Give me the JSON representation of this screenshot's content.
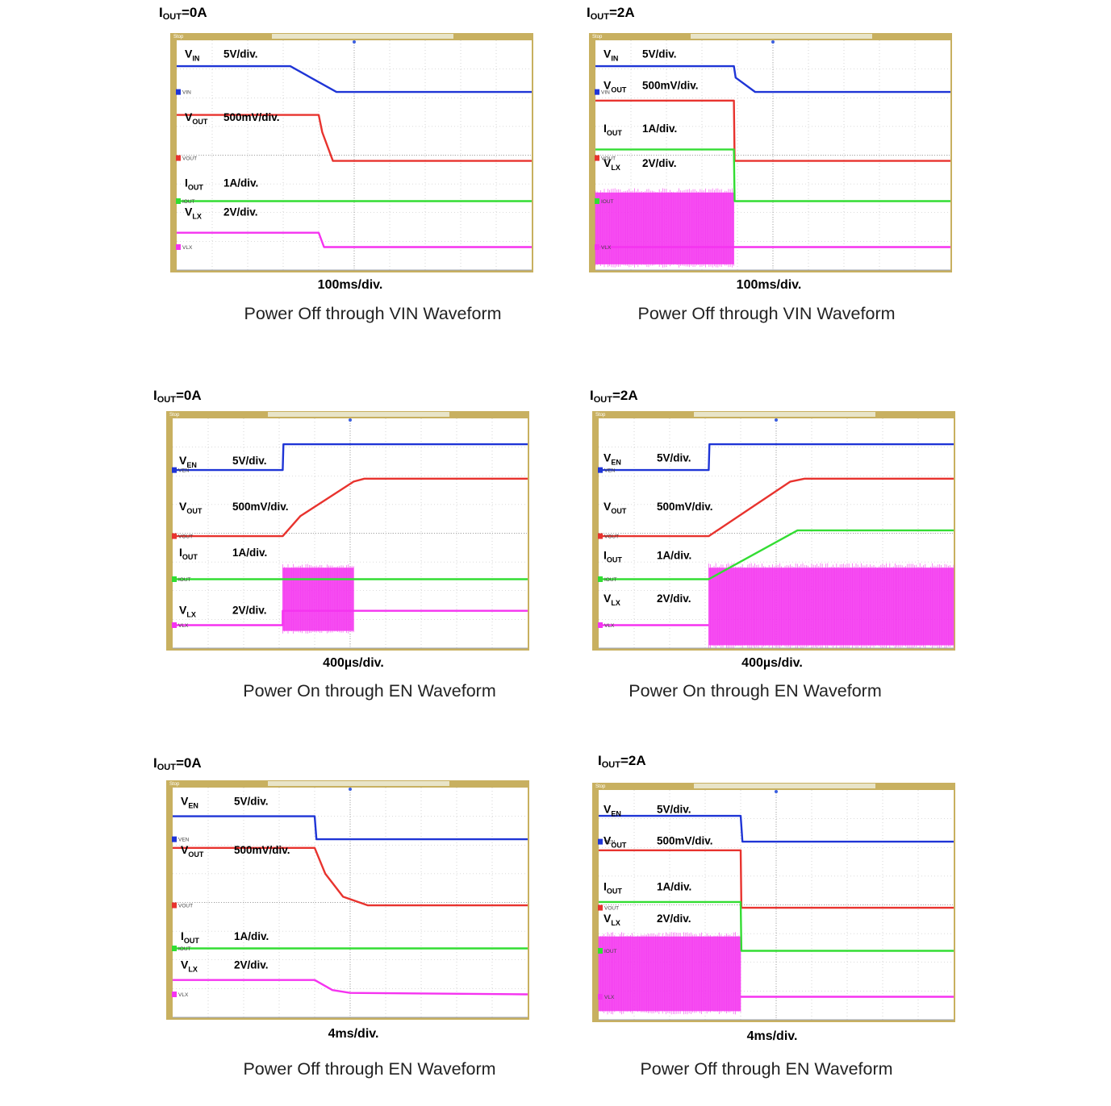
{
  "colors": {
    "VIN": "#1f35d6",
    "VEN": "#1f35d6",
    "VOUT": "#e8332e",
    "IOUT": "#33dd33",
    "VLX": "#f533f0",
    "frame": "#c8b060",
    "plot_bg": "#ffffff",
    "grid": "#b8b8b8"
  },
  "panels": [
    {
      "condition_main": "I",
      "condition_sub": "OUT",
      "condition_value": "=0A",
      "status": "Stop",
      "timebase": "100ms/div.",
      "caption": "Power Off through VIN Waveform",
      "trace_labels": [
        {
          "main": "V",
          "sub": "IN",
          "scale": "5V/div."
        },
        {
          "main": "V",
          "sub": "OUT",
          "scale": "500mV/div."
        },
        {
          "main": "I",
          "sub": "OUT",
          "scale": "1A/div."
        },
        {
          "main": "V",
          "sub": "LX",
          "scale": "2V/div."
        }
      ],
      "channel_markers": [
        "VIN",
        "VOUT",
        "IOUT",
        "VLX"
      ]
    },
    {
      "condition_main": "I",
      "condition_sub": "OUT",
      "condition_value": "=2A",
      "status": "Stop",
      "timebase": "100ms/div.",
      "caption": "Power Off through VIN Waveform",
      "trace_labels": [
        {
          "main": "V",
          "sub": "IN",
          "scale": "5V/div."
        },
        {
          "main": "V",
          "sub": "OUT",
          "scale": "500mV/div."
        },
        {
          "main": "I",
          "sub": "OUT",
          "scale": "1A/div."
        },
        {
          "main": "V",
          "sub": "LX",
          "scale": "2V/div."
        }
      ],
      "channel_markers": [
        "VIN",
        "VOUT",
        "IOUT",
        "VLX"
      ]
    },
    {
      "condition_main": "I",
      "condition_sub": "OUT",
      "condition_value": "=0A",
      "status": "Stop",
      "timebase": "400µs/div.",
      "caption": "Power On through EN Waveform",
      "trace_labels": [
        {
          "main": "V",
          "sub": "EN",
          "scale": "5V/div."
        },
        {
          "main": "V",
          "sub": "OUT",
          "scale": "500mV/div."
        },
        {
          "main": "I",
          "sub": "OUT",
          "scale": "1A/div."
        },
        {
          "main": "V",
          "sub": "LX",
          "scale": "2V/div."
        }
      ],
      "channel_markers": [
        "VEN",
        "VOUT",
        "IOUT",
        "VLX"
      ]
    },
    {
      "condition_main": "I",
      "condition_sub": "OUT",
      "condition_value": "=2A",
      "status": "Stop",
      "timebase": "400µs/div.",
      "caption": "Power On through EN Waveform",
      "trace_labels": [
        {
          "main": "V",
          "sub": "EN",
          "scale": "5V/div."
        },
        {
          "main": "V",
          "sub": "OUT",
          "scale": "500mV/div."
        },
        {
          "main": "I",
          "sub": "OUT",
          "scale": "1A/div."
        },
        {
          "main": "V",
          "sub": "LX",
          "scale": "2V/div."
        }
      ],
      "channel_markers": [
        "VEN",
        "VOUT",
        "IOUT",
        "VLX"
      ]
    },
    {
      "condition_main": "I",
      "condition_sub": "OUT",
      "condition_value": "=0A",
      "status": "Stop",
      "timebase": "4ms/div.",
      "caption": "Power Off through EN Waveform",
      "trace_labels": [
        {
          "main": "V",
          "sub": "EN",
          "scale": "5V/div."
        },
        {
          "main": "V",
          "sub": "OUT",
          "scale": "500mV/div."
        },
        {
          "main": "I",
          "sub": "OUT",
          "scale": "1A/div."
        },
        {
          "main": "V",
          "sub": "LX",
          "scale": "2V/div."
        }
      ],
      "channel_markers": [
        "VEN",
        "VOUT",
        "IOUT",
        "VLX"
      ]
    },
    {
      "condition_main": "I",
      "condition_sub": "OUT",
      "condition_value": "=2A",
      "status": "Stop",
      "timebase": "4ms/div.",
      "caption": "Power Off through EN Waveform",
      "trace_labels": [
        {
          "main": "V",
          "sub": "EN",
          "scale": "5V/div."
        },
        {
          "main": "V",
          "sub": "OUT",
          "scale": "500mV/div."
        },
        {
          "main": "I",
          "sub": "OUT",
          "scale": "1A/div."
        },
        {
          "main": "V",
          "sub": "LX",
          "scale": "2V/div."
        }
      ],
      "channel_markers": [
        "VEN",
        "VOUT",
        "IOUT",
        "VLX"
      ]
    }
  ],
  "chart_data": [
    {
      "type": "line",
      "grid": true,
      "x_divisions": 10,
      "y_divisions": 8,
      "x_unit": "div",
      "y_unit": "div",
      "series": [
        {
          "name": "VIN",
          "points": [
            [
              0,
              7.1
            ],
            [
              3.2,
              7.1
            ],
            [
              4.5,
              6.2
            ],
            [
              10,
              6.2
            ]
          ]
        },
        {
          "name": "VOUT",
          "points": [
            [
              0,
              5.4
            ],
            [
              4.0,
              5.4
            ],
            [
              4.1,
              4.8
            ],
            [
              4.4,
              3.8
            ],
            [
              10,
              3.8
            ]
          ]
        },
        {
          "name": "IOUT",
          "points": [
            [
              0,
              2.4
            ],
            [
              10,
              2.4
            ]
          ]
        },
        {
          "name": "VLX",
          "points": [
            [
              0,
              1.3
            ],
            [
              4.0,
              1.3
            ],
            [
              4.15,
              0.8
            ],
            [
              10,
              0.8
            ]
          ]
        }
      ]
    },
    {
      "type": "line",
      "grid": true,
      "x_divisions": 10,
      "y_divisions": 8,
      "x_unit": "div",
      "y_unit": "div",
      "series": [
        {
          "name": "VIN",
          "points": [
            [
              0,
              7.1
            ],
            [
              3.9,
              7.1
            ],
            [
              3.95,
              6.7
            ],
            [
              4.5,
              6.2
            ],
            [
              10,
              6.2
            ]
          ]
        },
        {
          "name": "VOUT",
          "points": [
            [
              0,
              5.9
            ],
            [
              3.9,
              5.9
            ],
            [
              3.92,
              3.8
            ],
            [
              10,
              3.8
            ]
          ]
        },
        {
          "name": "IOUT",
          "points": [
            [
              0,
              4.2
            ],
            [
              3.9,
              4.2
            ],
            [
              3.92,
              2.4
            ],
            [
              10,
              2.4
            ]
          ]
        },
        {
          "name": "VLX",
          "points": [
            [
              0,
              0.8
            ],
            [
              10,
              0.8
            ]
          ],
          "switching": {
            "from": 0,
            "to": 3.9,
            "low": 0.2,
            "high": 2.7
          }
        }
      ]
    },
    {
      "type": "line",
      "grid": true,
      "x_divisions": 10,
      "y_divisions": 8,
      "x_unit": "div",
      "y_unit": "div",
      "series": [
        {
          "name": "VEN",
          "points": [
            [
              0,
              6.2
            ],
            [
              3.1,
              6.2
            ],
            [
              3.12,
              7.1
            ],
            [
              10,
              7.1
            ]
          ]
        },
        {
          "name": "VOUT",
          "points": [
            [
              0,
              3.9
            ],
            [
              3.1,
              3.9
            ],
            [
              3.6,
              4.6
            ],
            [
              5.1,
              5.8
            ],
            [
              5.4,
              5.9
            ],
            [
              10,
              5.9
            ]
          ]
        },
        {
          "name": "IOUT",
          "points": [
            [
              0,
              2.4
            ],
            [
              10,
              2.4
            ]
          ]
        },
        {
          "name": "VLX",
          "points": [
            [
              0,
              0.8
            ],
            [
              3.1,
              0.8
            ],
            [
              3.1,
              1.3
            ],
            [
              10,
              1.3
            ]
          ],
          "switching": {
            "from": 3.1,
            "to": 5.1,
            "low": 0.6,
            "high": 2.8
          }
        }
      ]
    },
    {
      "type": "line",
      "grid": true,
      "x_divisions": 10,
      "y_divisions": 8,
      "x_unit": "div",
      "y_unit": "div",
      "series": [
        {
          "name": "VEN",
          "points": [
            [
              0,
              6.2
            ],
            [
              3.1,
              6.2
            ],
            [
              3.12,
              7.1
            ],
            [
              10,
              7.1
            ]
          ]
        },
        {
          "name": "VOUT",
          "points": [
            [
              0,
              3.9
            ],
            [
              3.1,
              3.9
            ],
            [
              5.4,
              5.8
            ],
            [
              5.8,
              5.9
            ],
            [
              10,
              5.9
            ]
          ]
        },
        {
          "name": "IOUT",
          "points": [
            [
              0,
              2.4
            ],
            [
              3.1,
              2.4
            ],
            [
              5.6,
              4.1
            ],
            [
              10,
              4.1
            ]
          ]
        },
        {
          "name": "VLX",
          "points": [
            [
              0,
              0.8
            ],
            [
              3.1,
              0.8
            ]
          ],
          "switching": {
            "from": 3.1,
            "to": 10,
            "low": 0.1,
            "high": 2.8
          }
        }
      ]
    },
    {
      "type": "line",
      "grid": true,
      "x_divisions": 10,
      "y_divisions": 8,
      "x_unit": "div",
      "y_unit": "div",
      "series": [
        {
          "name": "VEN",
          "points": [
            [
              0,
              7.0
            ],
            [
              4.0,
              7.0
            ],
            [
              4.05,
              6.2
            ],
            [
              10,
              6.2
            ]
          ]
        },
        {
          "name": "VOUT",
          "points": [
            [
              0,
              5.9
            ],
            [
              4.0,
              5.9
            ],
            [
              4.3,
              5.0
            ],
            [
              4.8,
              4.2
            ],
            [
              5.5,
              3.9
            ],
            [
              10,
              3.9
            ]
          ]
        },
        {
          "name": "IOUT",
          "points": [
            [
              0,
              2.4
            ],
            [
              10,
              2.4
            ]
          ]
        },
        {
          "name": "VLX",
          "points": [
            [
              0,
              1.3
            ],
            [
              4.0,
              1.3
            ],
            [
              4.5,
              0.95
            ],
            [
              5.0,
              0.85
            ],
            [
              10,
              0.8
            ]
          ]
        }
      ]
    },
    {
      "type": "line",
      "grid": true,
      "x_divisions": 10,
      "y_divisions": 8,
      "x_unit": "div",
      "y_unit": "div",
      "series": [
        {
          "name": "VEN",
          "points": [
            [
              0,
              7.1
            ],
            [
              4.0,
              7.1
            ],
            [
              4.05,
              6.2
            ],
            [
              10,
              6.2
            ]
          ]
        },
        {
          "name": "VOUT",
          "points": [
            [
              0,
              5.9
            ],
            [
              4.0,
              5.9
            ],
            [
              4.02,
              3.9
            ],
            [
              10,
              3.9
            ]
          ]
        },
        {
          "name": "IOUT",
          "points": [
            [
              0,
              4.1
            ],
            [
              4.0,
              4.1
            ],
            [
              4.02,
              2.4
            ],
            [
              10,
              2.4
            ]
          ]
        },
        {
          "name": "VLX",
          "points": [
            [
              4.0,
              0.8
            ],
            [
              10,
              0.8
            ]
          ],
          "switching": {
            "from": 0,
            "to": 4.0,
            "low": 0.3,
            "high": 2.9
          }
        }
      ]
    }
  ]
}
